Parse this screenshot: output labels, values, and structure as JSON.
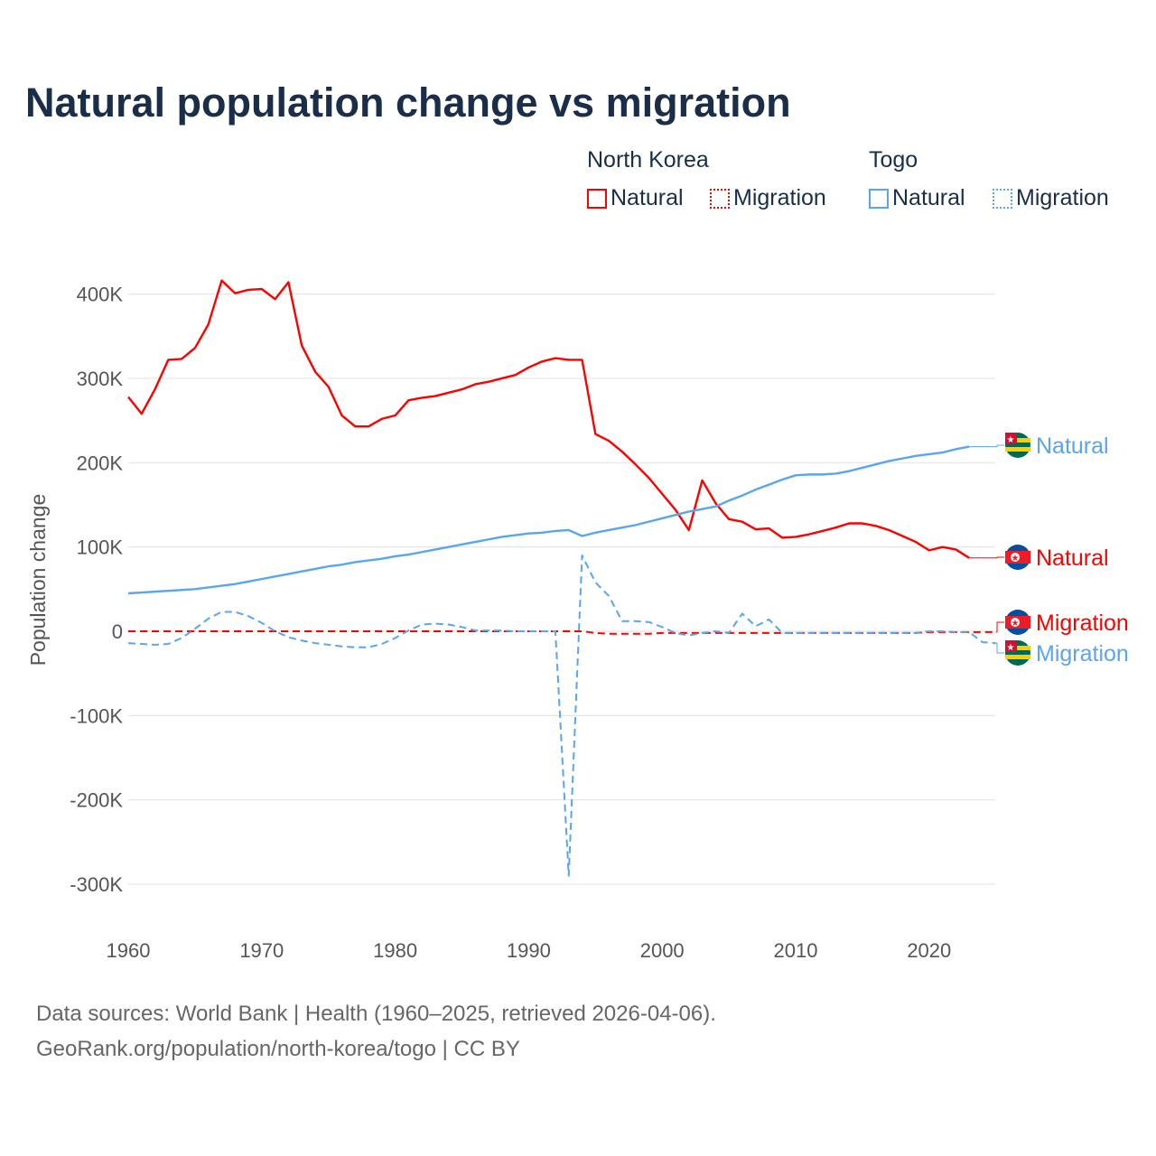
{
  "title": "Natural population change vs migration",
  "legend": {
    "groups": [
      {
        "name": "North Korea",
        "items": [
          "Natural",
          "Migration"
        ]
      },
      {
        "name": "Togo",
        "items": [
          "Natural",
          "Migration"
        ]
      }
    ]
  },
  "footer": {
    "line1": "Data sources: World Bank | Health (1960–2025, retrieved 2026-04-06).",
    "line2": "GeoRank.org/population/north-korea/togo | CC BY"
  },
  "colors": {
    "north_korea": "#ff0000",
    "togo": "#5aa5ec",
    "grid": "#e6e6e6"
  },
  "chart_data": {
    "type": "line",
    "title": "Natural population change vs migration",
    "xlabel": "",
    "ylabel": "Population change",
    "xlim": [
      1960,
      2025
    ],
    "ylim": [
      -300000,
      420000
    ],
    "xticks": [
      1960,
      1970,
      1980,
      1990,
      2000,
      2010,
      2020
    ],
    "xtick_labels": [
      "1960",
      "1970",
      "1980",
      "1990",
      "2000",
      "2010",
      "2020"
    ],
    "yticks": [
      400000,
      300000,
      200000,
      100000,
      0,
      -100000,
      -200000,
      -300000
    ],
    "ytick_labels": [
      "400K",
      "300K",
      "200K",
      "100K",
      "0",
      "-100K",
      "-200K",
      "-300K"
    ],
    "grid": true,
    "series": [
      {
        "name": "Natural",
        "country": "North Korea",
        "color": "#ff0000",
        "dash": false,
        "start": 1960,
        "end_label": "Natural",
        "values": [
          278,
          258,
          287,
          322,
          323,
          336,
          364,
          416,
          401,
          405,
          406,
          394,
          414,
          339,
          308,
          290,
          256,
          243,
          243,
          252,
          256,
          274,
          277,
          279,
          283,
          287,
          293,
          296,
          300,
          304,
          313,
          320,
          324,
          322,
          322,
          234,
          226,
          213,
          198,
          182,
          163,
          144,
          120,
          179,
          152,
          133,
          130,
          121,
          122,
          111,
          112,
          115,
          119,
          123,
          128,
          128,
          125,
          120,
          113,
          106,
          96,
          100,
          97,
          87
        ]
      },
      {
        "name": "Migration",
        "country": "North Korea",
        "color": "#ff0000",
        "dash": true,
        "start": 1960,
        "end_label": "Migration",
        "values": [
          0,
          0,
          0,
          0,
          0,
          0,
          0,
          0,
          0,
          0,
          0,
          0,
          0,
          0,
          0,
          0,
          0,
          0,
          0,
          0,
          0,
          0,
          0,
          0,
          0,
          0,
          0,
          0,
          0,
          0,
          0,
          0,
          0,
          0,
          0,
          -2,
          -3,
          -3,
          -3,
          -3,
          -2,
          -2,
          -2,
          -2,
          -2,
          -2,
          -2,
          -2,
          -2,
          -2,
          -2,
          -2,
          -2,
          -2,
          -2,
          -2,
          -2,
          -2,
          -2,
          -2,
          -1,
          -1,
          -1,
          -1,
          -1,
          -1
        ]
      },
      {
        "name": "Natural",
        "country": "Togo",
        "color": "#5aa5ec",
        "dash": false,
        "start": 1960,
        "end_label": "Natural",
        "values": [
          45,
          46,
          47,
          48,
          49,
          50,
          52,
          54,
          56,
          59,
          62,
          65,
          68,
          71,
          74,
          77,
          79,
          82,
          84,
          86,
          89,
          91,
          94,
          97,
          100,
          103,
          106,
          109,
          112,
          114,
          116,
          117,
          119,
          120,
          113,
          117,
          120,
          123,
          126,
          130,
          134,
          138,
          142,
          145,
          148,
          155,
          161,
          168,
          174,
          180,
          185,
          186,
          186,
          187,
          190,
          194,
          198,
          202,
          205,
          208,
          210,
          212,
          216,
          219
        ]
      },
      {
        "name": "Migration",
        "country": "Togo",
        "color": "#5aa5ec",
        "dash": true,
        "start": 1960,
        "end_label": "Migration",
        "values": [
          -14,
          -15,
          -16,
          -15,
          -8,
          3,
          15,
          23,
          23,
          18,
          10,
          0,
          -7,
          -11,
          -14,
          -16,
          -18,
          -19,
          -19,
          -15,
          -8,
          1,
          8,
          9,
          8,
          5,
          1,
          1,
          1,
          0,
          0,
          0,
          0,
          -290,
          90,
          58,
          42,
          12,
          12,
          11,
          5,
          -2,
          -5,
          -2,
          0,
          -2,
          21,
          6,
          14,
          -2,
          -2,
          -2,
          -2,
          -2,
          -2,
          -2,
          -2,
          -2,
          -2,
          -2,
          0,
          0,
          -1,
          -1,
          -13,
          -14
        ]
      }
    ],
    "value_unit": "thousands"
  }
}
